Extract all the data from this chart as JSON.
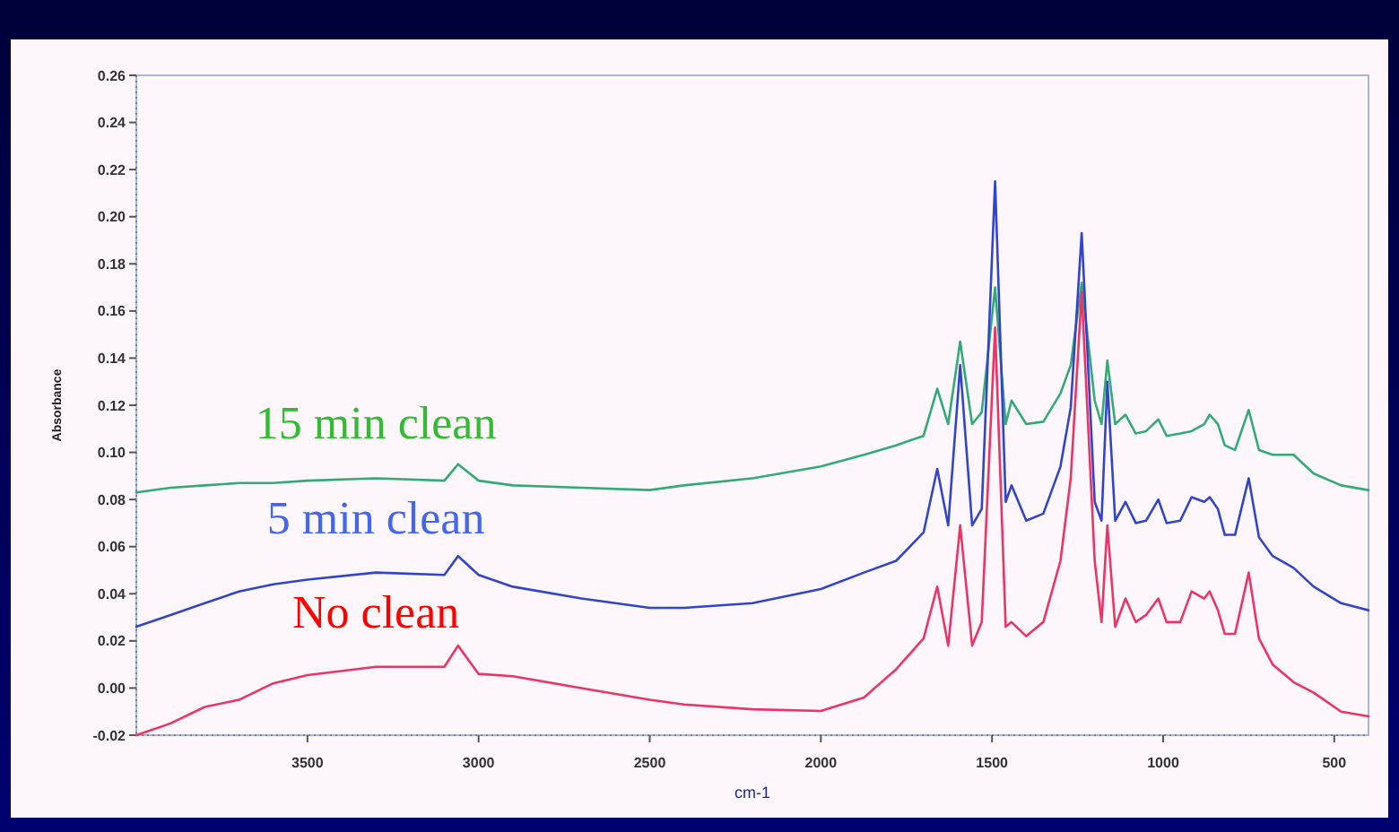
{
  "chart_data": {
    "type": "line",
    "xlabel": "cm-1",
    "ylabel": "Absorbance",
    "x": [
      4000,
      3900,
      3800,
      3700,
      3600,
      3500,
      3300,
      3100,
      3060,
      3000,
      2900,
      2700,
      2500,
      2400,
      2200,
      2000,
      1874,
      1780,
      1700,
      1660,
      1628,
      1593,
      1558,
      1530,
      1491,
      1460,
      1443,
      1400,
      1350,
      1300,
      1270,
      1238,
      1200,
      1180,
      1163,
      1140,
      1110,
      1080,
      1050,
      1014,
      990,
      950,
      917,
      880,
      864,
      840,
      820,
      790,
      750,
      720,
      680,
      619,
      560,
      480,
      400
    ],
    "xlim": [
      4000,
      400
    ],
    "xticks": [
      3500,
      3000,
      2500,
      2000,
      1500,
      1000,
      500
    ],
    "ylim": [
      -0.02,
      0.26
    ],
    "yticks": [
      -0.02,
      {
        "value": 0,
        "label": "0.00"
      },
      0.02,
      0.04,
      0.06,
      0.08,
      {
        "value": 0.1,
        "label": "0.10"
      },
      0.12,
      0.14,
      0.16,
      0.18,
      {
        "value": 0.2,
        "label": "0.20"
      },
      0.22,
      0.24,
      0.26
    ],
    "grid": false,
    "marker": "none",
    "line_style": "solid",
    "series": [
      {
        "name": "15 min clean",
        "color": "#33aa77",
        "values": [
          0.083,
          0.085,
          0.086,
          0.087,
          0.087,
          0.088,
          0.089,
          0.088,
          0.095,
          0.088,
          0.086,
          0.085,
          0.084,
          0.086,
          0.089,
          0.094,
          0.099,
          0.103,
          0.107,
          0.127,
          0.112,
          0.147,
          0.112,
          0.117,
          0.17,
          0.112,
          0.122,
          0.112,
          0.113,
          0.125,
          0.137,
          0.172,
          0.122,
          0.112,
          0.139,
          0.112,
          0.116,
          0.108,
          0.109,
          0.114,
          0.107,
          0.108,
          0.109,
          0.112,
          0.116,
          0.112,
          0.103,
          0.101,
          0.118,
          0.101,
          0.099,
          0.099,
          0.091,
          0.086,
          0.084
        ]
      },
      {
        "name": "5 min clean",
        "color": "#3344cc",
        "values": [
          0.026,
          0.031,
          0.036,
          0.041,
          0.044,
          0.046,
          0.049,
          0.048,
          0.056,
          0.048,
          0.043,
          0.038,
          0.034,
          0.034,
          0.036,
          0.042,
          0.049,
          0.054,
          0.066,
          0.093,
          0.069,
          0.137,
          0.069,
          0.076,
          0.215,
          0.079,
          0.086,
          0.071,
          0.074,
          0.094,
          0.119,
          0.193,
          0.079,
          0.071,
          0.13,
          0.071,
          0.079,
          0.07,
          0.071,
          0.08,
          0.07,
          0.071,
          0.081,
          0.079,
          0.081,
          0.076,
          0.065,
          0.065,
          0.089,
          0.064,
          0.056,
          0.051,
          0.043,
          0.036,
          0.033
        ]
      },
      {
        "name": "No clean",
        "color": "#ee3366",
        "values": [
          -0.02,
          -0.015,
          -0.008,
          -0.005,
          0.002,
          0.0055,
          0.009,
          0.009,
          0.018,
          0.006,
          0.005,
          0.0,
          -0.005,
          -0.007,
          -0.009,
          -0.0097,
          -0.004,
          0.008,
          0.021,
          0.043,
          0.018,
          0.069,
          0.018,
          0.028,
          0.153,
          0.026,
          0.028,
          0.022,
          0.028,
          0.054,
          0.089,
          0.168,
          0.054,
          0.028,
          0.069,
          0.026,
          0.038,
          0.028,
          0.031,
          0.038,
          0.028,
          0.028,
          0.041,
          0.038,
          0.041,
          0.033,
          0.023,
          0.023,
          0.049,
          0.021,
          0.01,
          0.0025,
          -0.002,
          -0.01,
          -0.012
        ]
      }
    ]
  }
}
